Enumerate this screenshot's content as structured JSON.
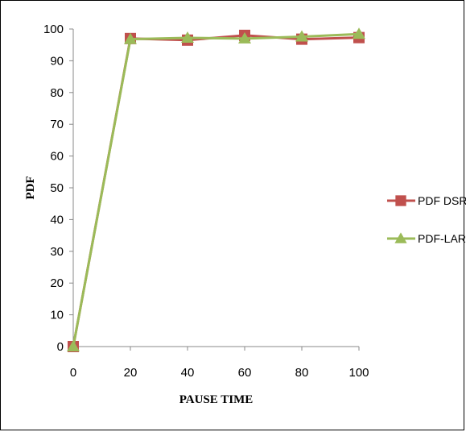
{
  "chart_data": {
    "type": "line",
    "title": "",
    "xlabel": "PAUSE TIME",
    "ylabel": "PDF",
    "x": [
      0,
      20,
      40,
      60,
      80,
      100
    ],
    "x_ticks": [
      "0",
      "20",
      "40",
      "60",
      "80",
      "100"
    ],
    "y_ticks": [
      "0",
      "10",
      "20",
      "30",
      "40",
      "50",
      "60",
      "70",
      "80",
      "90",
      "100"
    ],
    "xlim": [
      0,
      100
    ],
    "ylim": [
      0,
      100
    ],
    "grid": false,
    "legend_position": "right",
    "series": [
      {
        "name": "PDF DSR",
        "values": [
          0,
          97,
          96.5,
          98,
          96.8,
          97.3
        ],
        "color": "#c0504d",
        "marker": "square"
      },
      {
        "name": "PDF-LAR",
        "values": [
          0,
          96.8,
          97.2,
          97,
          97.6,
          98.4
        ],
        "color": "#9bbb59",
        "marker": "triangle"
      }
    ]
  }
}
